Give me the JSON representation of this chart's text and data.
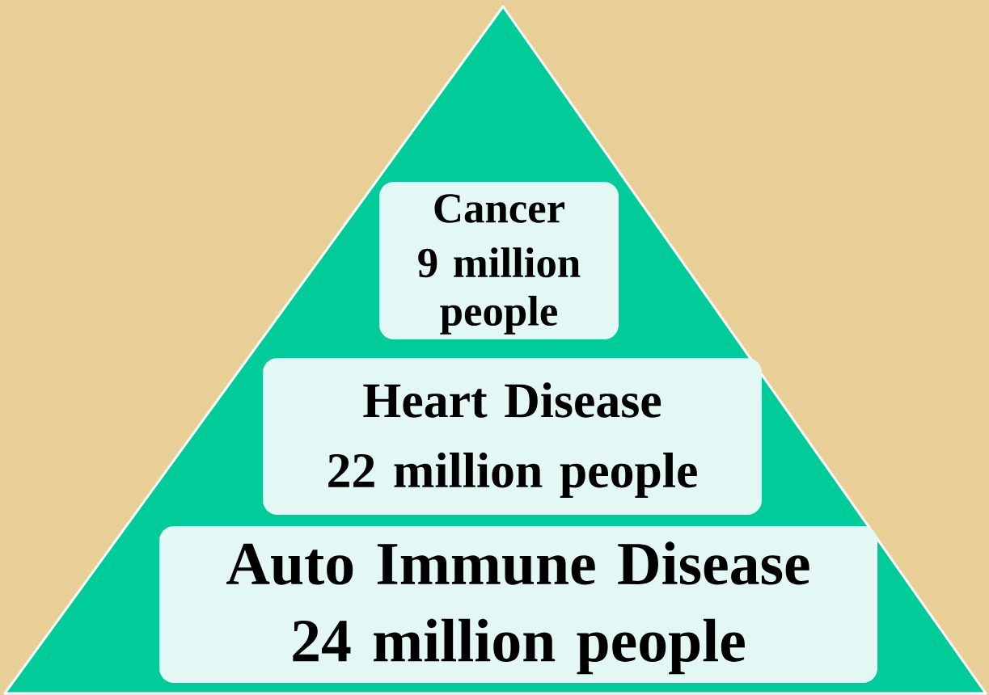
{
  "chart_data": {
    "type": "other",
    "categories": [
      "Cancer",
      "Heart Disease",
      "Auto Immune Disease"
    ],
    "values": [
      9,
      22,
      24
    ],
    "data_labels": true,
    "ylabel": "million people",
    "color": "#e3f8f4"
  }
}
